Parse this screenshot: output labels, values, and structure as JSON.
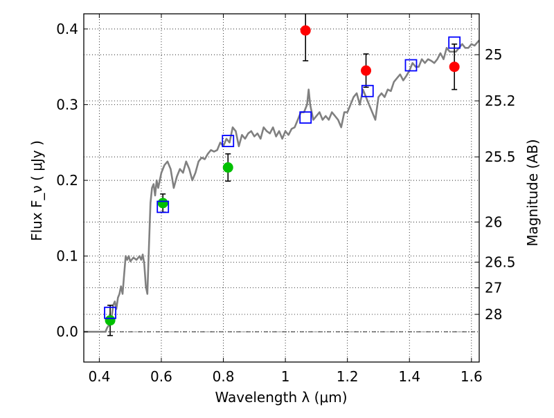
{
  "chart_data": {
    "type": "scatter",
    "xlabel": "Wavelength  λ (μm)",
    "ylabel": "Flux  F_ν  ( μJy )",
    "y2label": "Magnitude (AB)",
    "xlim": [
      0.35,
      1.625
    ],
    "ylim": [
      -0.04,
      0.42
    ],
    "x_ticks": [
      0.4,
      0.6,
      0.8,
      1.0,
      1.2,
      1.4,
      1.6
    ],
    "x_tick_labels": [
      "0.4",
      "0.6",
      "0.8",
      "1",
      "1.2",
      "1.4",
      "1.6"
    ],
    "y_ticks": [
      0.0,
      0.1,
      0.2,
      0.3,
      0.4
    ],
    "y_tick_labels": [
      "0.0",
      "0.1",
      "0.2",
      "0.3",
      "0.4"
    ],
    "y2_ticks": [
      {
        "label": "25",
        "flux": 0.366
      },
      {
        "label": "25.2",
        "flux": 0.305
      },
      {
        "label": "25.5",
        "flux": 0.231
      },
      {
        "label": "26",
        "flux": 0.145
      },
      {
        "label": "26.5",
        "flux": 0.092
      },
      {
        "label": "27",
        "flux": 0.058
      },
      {
        "label": "28",
        "flux": 0.023
      }
    ],
    "grid": true,
    "spectrum": {
      "color": "#808080",
      "x": [
        0.35,
        0.4,
        0.42,
        0.425,
        0.43,
        0.435,
        0.44,
        0.445,
        0.45,
        0.455,
        0.46,
        0.465,
        0.47,
        0.475,
        0.48,
        0.485,
        0.49,
        0.495,
        0.5,
        0.51,
        0.52,
        0.53,
        0.535,
        0.54,
        0.545,
        0.55,
        0.555,
        0.56,
        0.565,
        0.57,
        0.575,
        0.58,
        0.585,
        0.59,
        0.6,
        0.61,
        0.62,
        0.63,
        0.64,
        0.65,
        0.66,
        0.67,
        0.68,
        0.69,
        0.7,
        0.71,
        0.72,
        0.73,
        0.74,
        0.75,
        0.76,
        0.77,
        0.78,
        0.79,
        0.8,
        0.81,
        0.82,
        0.83,
        0.84,
        0.85,
        0.86,
        0.87,
        0.88,
        0.89,
        0.9,
        0.91,
        0.92,
        0.93,
        0.94,
        0.95,
        0.96,
        0.97,
        0.98,
        0.99,
        1.0,
        1.01,
        1.02,
        1.03,
        1.04,
        1.05,
        1.06,
        1.07,
        1.075,
        1.08,
        1.09,
        1.1,
        1.11,
        1.12,
        1.13,
        1.14,
        1.15,
        1.16,
        1.17,
        1.18,
        1.19,
        1.2,
        1.21,
        1.22,
        1.23,
        1.24,
        1.25,
        1.26,
        1.27,
        1.28,
        1.29,
        1.3,
        1.31,
        1.32,
        1.33,
        1.34,
        1.35,
        1.36,
        1.37,
        1.38,
        1.39,
        1.4,
        1.41,
        1.42,
        1.43,
        1.44,
        1.45,
        1.46,
        1.47,
        1.48,
        1.49,
        1.5,
        1.51,
        1.52,
        1.53,
        1.54,
        1.55,
        1.56,
        1.57,
        1.58,
        1.59,
        1.6,
        1.61,
        1.625
      ],
      "y": [
        0.0,
        0.0,
        0.0,
        0.005,
        0.008,
        0.012,
        0.02,
        0.035,
        0.04,
        0.03,
        0.045,
        0.05,
        0.06,
        0.05,
        0.075,
        0.1,
        0.095,
        0.1,
        0.093,
        0.098,
        0.095,
        0.1,
        0.095,
        0.102,
        0.09,
        0.06,
        0.05,
        0.11,
        0.17,
        0.19,
        0.195,
        0.18,
        0.2,
        0.19,
        0.21,
        0.22,
        0.225,
        0.215,
        0.19,
        0.205,
        0.215,
        0.21,
        0.225,
        0.215,
        0.2,
        0.21,
        0.225,
        0.23,
        0.228,
        0.235,
        0.24,
        0.238,
        0.24,
        0.25,
        0.245,
        0.255,
        0.25,
        0.27,
        0.265,
        0.245,
        0.26,
        0.255,
        0.262,
        0.265,
        0.258,
        0.262,
        0.255,
        0.27,
        0.265,
        0.262,
        0.27,
        0.258,
        0.265,
        0.255,
        0.265,
        0.26,
        0.268,
        0.27,
        0.28,
        0.29,
        0.29,
        0.3,
        0.32,
        0.3,
        0.28,
        0.285,
        0.29,
        0.28,
        0.285,
        0.28,
        0.29,
        0.285,
        0.28,
        0.27,
        0.29,
        0.29,
        0.3,
        0.31,
        0.315,
        0.3,
        0.32,
        0.31,
        0.3,
        0.29,
        0.28,
        0.31,
        0.315,
        0.31,
        0.32,
        0.318,
        0.33,
        0.335,
        0.34,
        0.332,
        0.338,
        0.345,
        0.355,
        0.35,
        0.35,
        0.36,
        0.355,
        0.36,
        0.358,
        0.355,
        0.36,
        0.368,
        0.36,
        0.375,
        0.37,
        0.37,
        0.37,
        0.375,
        0.38,
        0.375,
        0.375,
        0.38,
        0.378,
        0.385
      ]
    },
    "model_points": {
      "marker": "open-square",
      "color": "#0000ff",
      "x": [
        0.435,
        0.605,
        0.815,
        1.065,
        1.265,
        1.405,
        1.545
      ],
      "y": [
        0.025,
        0.165,
        0.252,
        0.283,
        0.318,
        0.352,
        0.382
      ]
    },
    "observed_points": [
      {
        "x": 0.435,
        "y": 0.015,
        "err": 0.02,
        "color": "#00c000"
      },
      {
        "x": 0.605,
        "y": 0.17,
        "err": 0.012,
        "color": "#00c000"
      },
      {
        "x": 0.815,
        "y": 0.217,
        "err": 0.018,
        "color": "#00c000"
      },
      {
        "x": 1.065,
        "y": 0.398,
        "err": 0.04,
        "color": "#ff0000"
      },
      {
        "x": 1.26,
        "y": 0.345,
        "err": 0.022,
        "color": "#ff0000"
      },
      {
        "x": 1.545,
        "y": 0.35,
        "err": 0.03,
        "color": "#ff0000"
      }
    ],
    "zero_line": {
      "y": 0.0,
      "style": "dash-dot"
    }
  }
}
